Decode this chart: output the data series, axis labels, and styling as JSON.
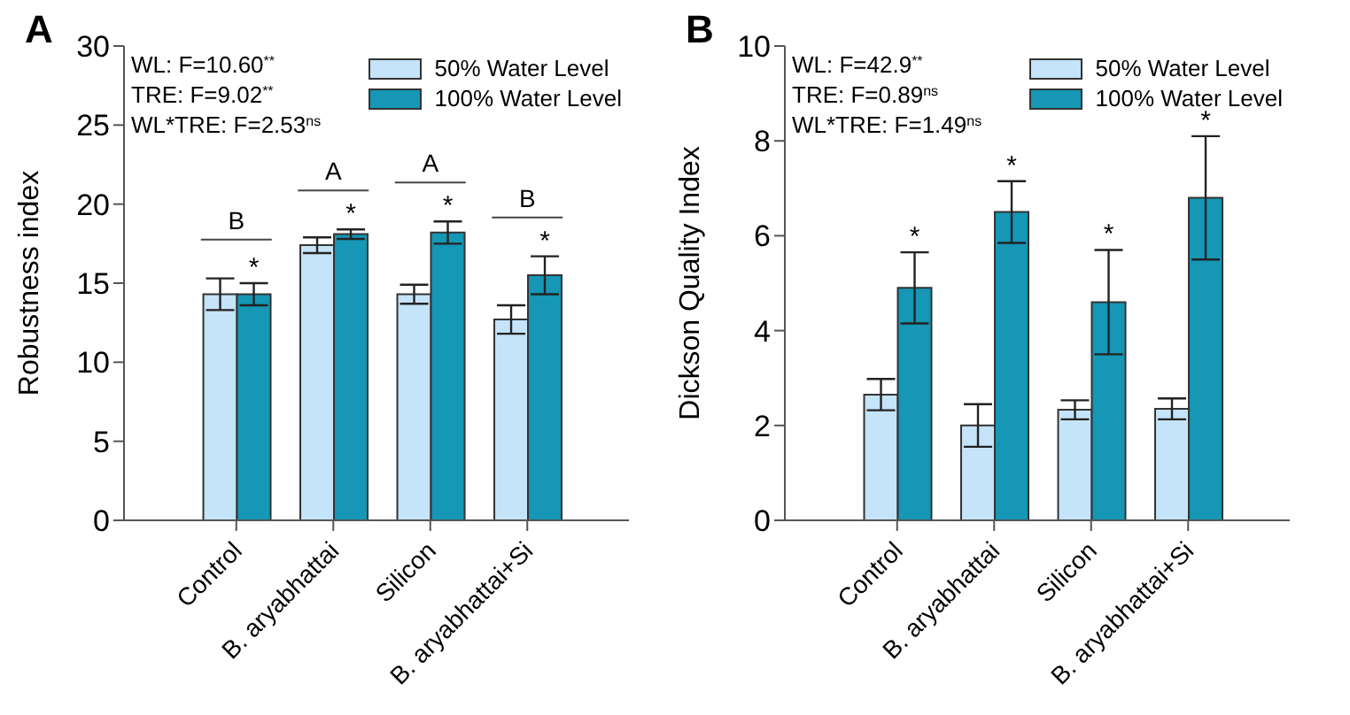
{
  "chart_data": [
    {
      "type": "bar",
      "title": "A",
      "ylabel": "Robustness index",
      "categories": [
        "Control",
        "B. aryabhattai",
        "Silicon",
        "B. aryabhattai+Si"
      ],
      "series": [
        {
          "name": "50% Water Level",
          "color": "#c5e3f9",
          "values": [
            14.3,
            17.4,
            14.3,
            12.7
          ],
          "errors": [
            1.0,
            0.5,
            0.6,
            0.9
          ]
        },
        {
          "name": "100% Water Level",
          "color": "#1597b5",
          "values": [
            14.3,
            18.1,
            18.2,
            15.5
          ],
          "errors": [
            0.7,
            0.3,
            0.7,
            1.2
          ],
          "value_labels": [
            "*",
            "*",
            "*",
            "*"
          ]
        }
      ],
      "ylim": [
        0,
        30
      ],
      "yticks": [
        0,
        5,
        10,
        15,
        20,
        25,
        30
      ],
      "legend": "top right",
      "annotations": [
        "WL: F=10.60$^{**}$",
        "TRE: F=9.02$^{**}$",
        "WL*TRE: F=2.53$^{ns}$",
        "B",
        "A",
        "A",
        "B"
      ]
    },
    {
      "type": "bar",
      "title": "B",
      "ylabel": "Dickson Quality Index",
      "categories": [
        "Control",
        "B. aryabhattai",
        "Silicon",
        "B. aryabhattai+Si"
      ],
      "series": [
        {
          "name": "50% Water Level",
          "color": "#c5e3f9",
          "values": [
            2.65,
            2.0,
            2.33,
            2.35
          ],
          "errors": [
            0.33,
            0.45,
            0.2,
            0.22
          ]
        },
        {
          "name": "100% Water Level",
          "color": "#1597b5",
          "values": [
            4.9,
            6.5,
            4.6,
            6.8
          ],
          "errors": [
            0.75,
            0.65,
            1.1,
            1.3
          ],
          "value_labels": [
            "*",
            "*",
            "*",
            "*"
          ]
        }
      ],
      "ylim": [
        0,
        10
      ],
      "yticks": [
        0,
        2,
        4,
        6,
        8,
        10
      ],
      "legend": "top right",
      "annotations": [
        "WL: F=42.9$^{**}$",
        "TRE: F=0.89$^{ns}$",
        "WL*TRE: F=1.49$^{ns}$"
      ]
    }
  ]
}
